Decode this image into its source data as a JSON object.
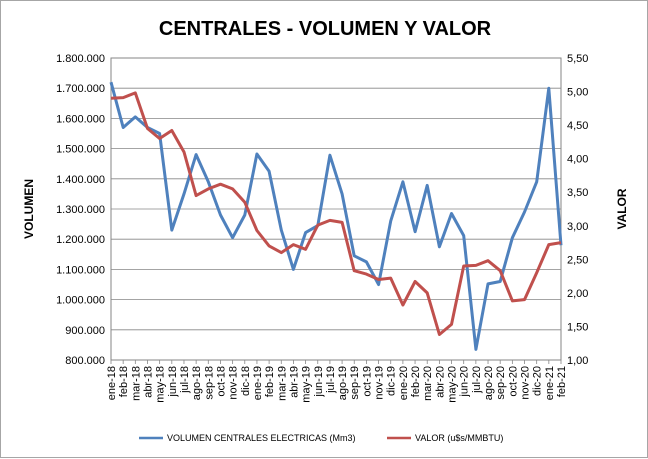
{
  "chart_data": {
    "type": "line",
    "title": "CENTRALES - VOLUMEN Y VALOR",
    "ylabel": "VOLUMEN",
    "y2label": "VALOR",
    "categories": [
      "ene-18",
      "feb-18",
      "mar-18",
      "abr-18",
      "may-18",
      "jun-18",
      "jul-18",
      "ago-18",
      "sep-18",
      "oct-18",
      "nov-18",
      "dic-18",
      "ene-19",
      "feb-19",
      "mar-19",
      "abr-19",
      "may-19",
      "jun-19",
      "jul-19",
      "ago-19",
      "sep-19",
      "oct-19",
      "nov-19",
      "dic-19",
      "ene-20",
      "feb-20",
      "mar-20",
      "abr-20",
      "may-20",
      "jun-20",
      "jul-20",
      "ago-20",
      "sep-20",
      "oct-20",
      "nov-20",
      "dic-20",
      "ene-21",
      "feb-21"
    ],
    "y_ticks": [
      "800.000",
      "900.000",
      "1.000.000",
      "1.100.000",
      "1.200.000",
      "1.300.000",
      "1.400.000",
      "1.500.000",
      "1.600.000",
      "1.700.000",
      "1.800.000"
    ],
    "y2_ticks": [
      "1,00",
      "1,50",
      "2,00",
      "2,50",
      "3,00",
      "3,50",
      "4,00",
      "4,50",
      "5,00",
      "5,50"
    ],
    "ylim": [
      800000,
      1800000
    ],
    "y2lim": [
      1.0,
      5.5
    ],
    "grid": true,
    "legend_position": "bottom",
    "series": [
      {
        "name": "VOLUMEN CENTRALES ELECTRICAS (Mm3)",
        "axis": "left",
        "color": "#4f81bd",
        "values": [
          1720000,
          1570000,
          1605000,
          1570000,
          1550000,
          1230000,
          1350000,
          1480000,
          1390000,
          1280000,
          1205000,
          1280000,
          1482000,
          1425000,
          1230000,
          1100000,
          1222000,
          1245000,
          1478000,
          1350000,
          1145000,
          1125000,
          1050000,
          1260000,
          1390000,
          1225000,
          1378000,
          1175000,
          1285000,
          1212000,
          835000,
          1052000,
          1060000,
          1205000,
          1290000,
          1390000,
          1700000,
          1180000
        ]
      },
      {
        "name": "VALOR (u$s/MMBTU)",
        "axis": "right",
        "color": "#c0504d",
        "values": [
          4.9,
          4.91,
          4.98,
          4.45,
          4.3,
          4.42,
          4.1,
          3.45,
          3.55,
          3.62,
          3.55,
          3.35,
          2.93,
          2.7,
          2.6,
          2.72,
          2.65,
          3.01,
          3.08,
          3.05,
          2.33,
          2.28,
          2.2,
          2.22,
          1.82,
          2.17,
          2.0,
          1.38,
          1.53,
          2.4,
          2.41,
          2.48,
          2.33,
          1.88,
          1.9,
          2.3,
          2.72,
          2.75
        ]
      }
    ]
  }
}
